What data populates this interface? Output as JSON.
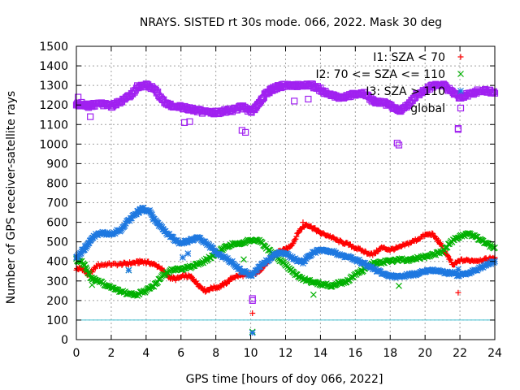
{
  "chart_data": {
    "type": "scatter",
    "title": "NRAYS. SISTED rt 30s mode. 066, 2022. Mask 30 deg",
    "xlabel": "GPS time [hours of doy 066, 2022]",
    "ylabel": "Number of GPS receiver-satellite rays",
    "xlim": [
      0,
      24
    ],
    "ylim": [
      0,
      1500
    ],
    "x_ticks": [
      0,
      2,
      4,
      6,
      8,
      10,
      12,
      14,
      16,
      18,
      20,
      22,
      24
    ],
    "y_ticks": [
      0,
      100,
      200,
      300,
      400,
      500,
      600,
      700,
      800,
      900,
      1000,
      1100,
      1200,
      1300,
      1400,
      1500
    ],
    "grid": true,
    "legend_position": "top-right",
    "reference_line": {
      "y": 100,
      "color": "#40c0d0"
    },
    "series": [
      {
        "name": "I1: SZA < 70",
        "color": "#ff0000",
        "marker": "plus",
        "points": [
          [
            0,
            360
          ],
          [
            0.3,
            365
          ],
          [
            0.7,
            330
          ],
          [
            1.2,
            380
          ],
          [
            1.8,
            385
          ],
          [
            2.5,
            385
          ],
          [
            3.0,
            390
          ],
          [
            3.5,
            395
          ],
          [
            3.8,
            400
          ],
          [
            4.3,
            390
          ],
          [
            4.8,
            370
          ],
          [
            5.3,
            320
          ],
          [
            5.7,
            310
          ],
          [
            6.2,
            325
          ],
          [
            6.6,
            320
          ],
          [
            7.0,
            280
          ],
          [
            7.4,
            250
          ],
          [
            7.8,
            265
          ],
          [
            8.2,
            270
          ],
          [
            8.6,
            290
          ],
          [
            9.0,
            320
          ],
          [
            9.5,
            330
          ],
          [
            10.0,
            330
          ],
          [
            10.4,
            345
          ],
          [
            10.8,
            380
          ],
          [
            11.2,
            420
          ],
          [
            11.6,
            450
          ],
          [
            12.0,
            460
          ],
          [
            12.4,
            490
          ],
          [
            12.8,
            560
          ],
          [
            13.2,
            590
          ],
          [
            13.6,
            570
          ],
          [
            14.0,
            545
          ],
          [
            14.5,
            530
          ],
          [
            15.0,
            505
          ],
          [
            15.5,
            490
          ],
          [
            16.0,
            470
          ],
          [
            16.5,
            450
          ],
          [
            17.0,
            435
          ],
          [
            17.5,
            470
          ],
          [
            18.0,
            460
          ],
          [
            18.5,
            470
          ],
          [
            19.0,
            490
          ],
          [
            19.5,
            510
          ],
          [
            20.0,
            535
          ],
          [
            20.4,
            540
          ],
          [
            20.8,
            500
          ],
          [
            21.2,
            440
          ],
          [
            21.6,
            380
          ],
          [
            22.0,
            405
          ],
          [
            22.5,
            405
          ],
          [
            23.0,
            405
          ],
          [
            23.5,
            410
          ],
          [
            24.0,
            420
          ]
        ]
      },
      {
        "name": "I2: 70 <= SZA <= 110",
        "color": "#00b000",
        "marker": "cross",
        "points": [
          [
            0,
            410
          ],
          [
            0.4,
            390
          ],
          [
            0.8,
            320
          ],
          [
            1.2,
            300
          ],
          [
            1.8,
            275
          ],
          [
            2.4,
            250
          ],
          [
            3.0,
            235
          ],
          [
            3.5,
            230
          ],
          [
            4.0,
            250
          ],
          [
            4.5,
            280
          ],
          [
            5.0,
            330
          ],
          [
            5.5,
            360
          ],
          [
            6.0,
            360
          ],
          [
            6.5,
            370
          ],
          [
            7.0,
            385
          ],
          [
            7.5,
            410
          ],
          [
            8.0,
            440
          ],
          [
            8.5,
            470
          ],
          [
            9.0,
            490
          ],
          [
            9.5,
            495
          ],
          [
            10.0,
            510
          ],
          [
            10.5,
            505
          ],
          [
            11.0,
            460
          ],
          [
            11.5,
            420
          ],
          [
            12.0,
            380
          ],
          [
            12.5,
            340
          ],
          [
            13.0,
            310
          ],
          [
            13.5,
            295
          ],
          [
            14.0,
            285
          ],
          [
            14.5,
            275
          ],
          [
            15.0,
            285
          ],
          [
            15.5,
            300
          ],
          [
            16.0,
            330
          ],
          [
            16.5,
            360
          ],
          [
            17.0,
            390
          ],
          [
            17.5,
            395
          ],
          [
            18.0,
            400
          ],
          [
            18.5,
            410
          ],
          [
            19.0,
            405
          ],
          [
            19.5,
            415
          ],
          [
            20.0,
            425
          ],
          [
            20.5,
            435
          ],
          [
            21.0,
            450
          ],
          [
            21.5,
            500
          ],
          [
            22.0,
            530
          ],
          [
            22.5,
            540
          ],
          [
            23.0,
            520
          ],
          [
            23.5,
            490
          ],
          [
            24.0,
            470
          ]
        ]
      },
      {
        "name": "I3: SZA > 110",
        "color": "#1e78e0",
        "marker": "star",
        "points": [
          [
            0,
            420
          ],
          [
            0.3,
            450
          ],
          [
            0.6,
            480
          ],
          [
            1.0,
            530
          ],
          [
            1.5,
            545
          ],
          [
            2.0,
            540
          ],
          [
            2.5,
            560
          ],
          [
            3.0,
            610
          ],
          [
            3.5,
            650
          ],
          [
            3.8,
            670
          ],
          [
            4.2,
            655
          ],
          [
            4.6,
            600
          ],
          [
            5.0,
            560
          ],
          [
            5.5,
            520
          ],
          [
            6.0,
            490
          ],
          [
            6.5,
            510
          ],
          [
            7.0,
            520
          ],
          [
            7.5,
            490
          ],
          [
            8.0,
            450
          ],
          [
            8.5,
            420
          ],
          [
            9.0,
            390
          ],
          [
            9.5,
            350
          ],
          [
            10.0,
            330
          ],
          [
            10.5,
            370
          ],
          [
            11.0,
            410
          ],
          [
            11.5,
            445
          ],
          [
            12.0,
            440
          ],
          [
            12.5,
            410
          ],
          [
            13.0,
            395
          ],
          [
            13.5,
            440
          ],
          [
            14.0,
            460
          ],
          [
            14.5,
            455
          ],
          [
            15.0,
            440
          ],
          [
            15.5,
            425
          ],
          [
            16.0,
            410
          ],
          [
            16.5,
            390
          ],
          [
            17.0,
            365
          ],
          [
            17.5,
            340
          ],
          [
            18.0,
            325
          ],
          [
            18.5,
            320
          ],
          [
            19.0,
            330
          ],
          [
            19.5,
            335
          ],
          [
            20.0,
            350
          ],
          [
            20.5,
            355
          ],
          [
            21.0,
            345
          ],
          [
            21.5,
            340
          ],
          [
            22.0,
            330
          ],
          [
            22.5,
            340
          ],
          [
            23.0,
            360
          ],
          [
            23.5,
            385
          ],
          [
            24.0,
            400
          ]
        ]
      },
      {
        "name": "global",
        "color": "#a020f0",
        "marker": "square",
        "points": [
          [
            0,
            1200
          ],
          [
            0.3,
            1205
          ],
          [
            0.7,
            1195
          ],
          [
            1.0,
            1200
          ],
          [
            1.5,
            1205
          ],
          [
            2.0,
            1195
          ],
          [
            2.5,
            1215
          ],
          [
            3.0,
            1240
          ],
          [
            3.5,
            1290
          ],
          [
            4.0,
            1300
          ],
          [
            4.5,
            1280
          ],
          [
            5.0,
            1220
          ],
          [
            5.5,
            1195
          ],
          [
            6.0,
            1190
          ],
          [
            6.5,
            1180
          ],
          [
            7.0,
            1170
          ],
          [
            7.5,
            1160
          ],
          [
            8.0,
            1160
          ],
          [
            8.5,
            1170
          ],
          [
            9.0,
            1175
          ],
          [
            9.5,
            1190
          ],
          [
            10.0,
            1165
          ],
          [
            10.4,
            1200
          ],
          [
            10.8,
            1250
          ],
          [
            11.2,
            1280
          ],
          [
            11.6,
            1295
          ],
          [
            12.0,
            1300
          ],
          [
            12.5,
            1300
          ],
          [
            13.0,
            1305
          ],
          [
            13.5,
            1300
          ],
          [
            14.0,
            1280
          ],
          [
            14.5,
            1250
          ],
          [
            15.0,
            1240
          ],
          [
            15.5,
            1245
          ],
          [
            16.0,
            1255
          ],
          [
            16.5,
            1260
          ],
          [
            17.0,
            1220
          ],
          [
            17.5,
            1215
          ],
          [
            18.0,
            1200
          ],
          [
            18.5,
            1170
          ],
          [
            19.0,
            1200
          ],
          [
            19.5,
            1250
          ],
          [
            20.0,
            1275
          ],
          [
            20.5,
            1300
          ],
          [
            21.0,
            1305
          ],
          [
            21.5,
            1270
          ],
          [
            22.0,
            1240
          ],
          [
            22.5,
            1255
          ],
          [
            23.0,
            1270
          ],
          [
            23.5,
            1275
          ],
          [
            24.0,
            1260
          ]
        ]
      }
    ],
    "outliers": [
      {
        "series": 0,
        "points": [
          [
            10.1,
            135
          ],
          [
            21.9,
            240
          ],
          [
            13.0,
            600
          ]
        ]
      },
      {
        "series": 1,
        "points": [
          [
            0.9,
            280
          ],
          [
            3.0,
            355
          ],
          [
            9.6,
            410
          ],
          [
            10.1,
            40
          ],
          [
            13.6,
            230
          ],
          [
            18.5,
            275
          ]
        ]
      },
      {
        "series": 2,
        "points": [
          [
            3.0,
            355
          ],
          [
            6.1,
            420
          ],
          [
            6.4,
            440
          ],
          [
            10.1,
            35
          ],
          [
            21.9,
            360
          ]
        ]
      },
      {
        "series": 3,
        "points": [
          [
            0.8,
            1140
          ],
          [
            6.2,
            1110
          ],
          [
            6.5,
            1115
          ],
          [
            9.5,
            1070
          ],
          [
            9.7,
            1060
          ],
          [
            10.1,
            210
          ],
          [
            10.1,
            200
          ],
          [
            12.5,
            1220
          ],
          [
            13.3,
            1230
          ],
          [
            18.4,
            1005
          ],
          [
            18.5,
            995
          ],
          [
            21.9,
            1075
          ],
          [
            21.9,
            1080
          ],
          [
            0.1,
            1240
          ]
        ]
      }
    ]
  }
}
